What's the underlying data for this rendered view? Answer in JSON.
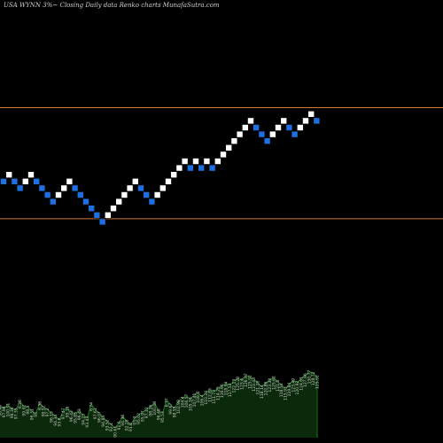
{
  "chart_data": {
    "type": "renko",
    "title": "USA WYNN 3%~  Closing Daily data  Renko  charts MunafaSutra.com",
    "ylim": [
      0,
      24
    ],
    "reference_lines": [
      18,
      1.5
    ],
    "colors": {
      "background": "#000000",
      "up_brick": "#ffffff",
      "down_brick": "#1e6fe0",
      "reference_line": "#d27a3c",
      "volume_fill": "#0b2a0b",
      "volume_line": "#1f8a1f"
    },
    "bricks": [
      {
        "level": 7,
        "dir": "down"
      },
      {
        "level": 8,
        "dir": "up"
      },
      {
        "level": 7,
        "dir": "down"
      },
      {
        "level": 6,
        "dir": "down"
      },
      {
        "level": 7,
        "dir": "up"
      },
      {
        "level": 8,
        "dir": "up"
      },
      {
        "level": 7,
        "dir": "down"
      },
      {
        "level": 6,
        "dir": "down"
      },
      {
        "level": 5,
        "dir": "down"
      },
      {
        "level": 4,
        "dir": "down"
      },
      {
        "level": 5,
        "dir": "up"
      },
      {
        "level": 6,
        "dir": "up"
      },
      {
        "level": 7,
        "dir": "up"
      },
      {
        "level": 6,
        "dir": "down"
      },
      {
        "level": 5,
        "dir": "down"
      },
      {
        "level": 4,
        "dir": "down"
      },
      {
        "level": 3,
        "dir": "down"
      },
      {
        "level": 2,
        "dir": "down"
      },
      {
        "level": 1,
        "dir": "down"
      },
      {
        "level": 2,
        "dir": "up"
      },
      {
        "level": 3,
        "dir": "up"
      },
      {
        "level": 4,
        "dir": "up"
      },
      {
        "level": 5,
        "dir": "up"
      },
      {
        "level": 6,
        "dir": "up"
      },
      {
        "level": 7,
        "dir": "up"
      },
      {
        "level": 6,
        "dir": "down"
      },
      {
        "level": 5,
        "dir": "down"
      },
      {
        "level": 4,
        "dir": "down"
      },
      {
        "level": 5,
        "dir": "up"
      },
      {
        "level": 6,
        "dir": "up"
      },
      {
        "level": 7,
        "dir": "up"
      },
      {
        "level": 8,
        "dir": "up"
      },
      {
        "level": 9,
        "dir": "up"
      },
      {
        "level": 10,
        "dir": "up"
      },
      {
        "level": 9,
        "dir": "down"
      },
      {
        "level": 10,
        "dir": "up"
      },
      {
        "level": 9,
        "dir": "down"
      },
      {
        "level": 10,
        "dir": "up"
      },
      {
        "level": 9,
        "dir": "down"
      },
      {
        "level": 10,
        "dir": "up"
      },
      {
        "level": 11,
        "dir": "up"
      },
      {
        "level": 12,
        "dir": "up"
      },
      {
        "level": 13,
        "dir": "up"
      },
      {
        "level": 14,
        "dir": "up"
      },
      {
        "level": 15,
        "dir": "up"
      },
      {
        "level": 16,
        "dir": "up"
      },
      {
        "level": 15,
        "dir": "down"
      },
      {
        "level": 14,
        "dir": "down"
      },
      {
        "level": 13,
        "dir": "down"
      },
      {
        "level": 14,
        "dir": "up"
      },
      {
        "level": 15,
        "dir": "up"
      },
      {
        "level": 16,
        "dir": "up"
      },
      {
        "level": 15,
        "dir": "down"
      },
      {
        "level": 14,
        "dir": "down"
      },
      {
        "level": 15,
        "dir": "up"
      },
      {
        "level": 16,
        "dir": "up"
      },
      {
        "level": 17,
        "dir": "up"
      },
      {
        "level": 16,
        "dir": "down"
      }
    ],
    "volume": [
      {
        "value": 38,
        "label": "98.46"
      },
      {
        "value": 36,
        "label": "97.98"
      },
      {
        "value": 40,
        "label": "100.01"
      },
      {
        "value": 35,
        "label": "98.36"
      },
      {
        "value": 34,
        "label": "97.35"
      },
      {
        "value": 44,
        "label": "6.28"
      },
      {
        "value": 38,
        "label": "99.92"
      },
      {
        "value": 37,
        "label": "98.3"
      },
      {
        "value": 33,
        "label": "96.31"
      },
      {
        "value": 29,
        "label": "95"
      },
      {
        "value": 42,
        "label": "6.38"
      },
      {
        "value": 37,
        "label": "98.52"
      },
      {
        "value": 34,
        "label": "97.2"
      },
      {
        "value": 30,
        "label": "96.15"
      },
      {
        "value": 26,
        "label": "94.34"
      },
      {
        "value": 22,
        "label": "93.6"
      },
      {
        "value": 34,
        "label": "97.47"
      },
      {
        "value": 36,
        "label": "99.15"
      },
      {
        "value": 31,
        "label": "96.43"
      },
      {
        "value": 29,
        "label": "95.85"
      },
      {
        "value": 33,
        "label": "96.43"
      },
      {
        "value": 27,
        "label": "94.23"
      },
      {
        "value": 24,
        "label": "93.43"
      },
      {
        "value": 41,
        "label": "6.74"
      },
      {
        "value": 34,
        "label": "97.61"
      },
      {
        "value": 30,
        "label": "96.07"
      },
      {
        "value": 25,
        "label": "94.85"
      },
      {
        "value": 20,
        "label": "93.52"
      },
      {
        "value": 16,
        "label": "92.4"
      },
      {
        "value": 12,
        "label": "90.61"
      },
      {
        "value": 18,
        "label": "91.6"
      },
      {
        "value": 26,
        "label": "94.36"
      },
      {
        "value": 20,
        "label": "92.28"
      },
      {
        "value": 16,
        "label": "91.8"
      },
      {
        "value": 24,
        "label": "93.9"
      },
      {
        "value": 28,
        "label": "95.02"
      },
      {
        "value": 31,
        "label": "95.97"
      },
      {
        "value": 35,
        "label": "97.32"
      },
      {
        "value": 38,
        "label": "98.16"
      },
      {
        "value": 42,
        "label": "100.08"
      },
      {
        "value": 33,
        "label": "96.48"
      },
      {
        "value": 30,
        "label": "95.53"
      },
      {
        "value": 46,
        "label": "6.77"
      },
      {
        "value": 40,
        "label": "99.67"
      },
      {
        "value": 36,
        "label": "98.55"
      },
      {
        "value": 44,
        "label": "102.98"
      },
      {
        "value": 48,
        "label": "104.4"
      },
      {
        "value": 51,
        "label": "106.57"
      },
      {
        "value": 47,
        "label": "105.16"
      },
      {
        "value": 52,
        "label": "107.41"
      },
      {
        "value": 54,
        "label": "108.8"
      },
      {
        "value": 50,
        "label": "106.4"
      },
      {
        "value": 55,
        "label": "110.24"
      },
      {
        "value": 58,
        "label": "112.83"
      },
      {
        "value": 56,
        "label": "111.73"
      },
      {
        "value": 60,
        "label": "114.25"
      },
      {
        "value": 63,
        "label": "116.96"
      },
      {
        "value": 66,
        "label": "118.94"
      },
      {
        "value": 64,
        "label": "117.53"
      },
      {
        "value": 69,
        "label": "122.13"
      },
      {
        "value": 72,
        "label": "125.28"
      },
      {
        "value": 70,
        "label": "123.6"
      },
      {
        "value": 76,
        "label": "126.97"
      },
      {
        "value": 74,
        "label": "125.92"
      },
      {
        "value": 71,
        "label": "123.43"
      },
      {
        "value": 67,
        "label": "121.28"
      },
      {
        "value": 62,
        "label": "118.14"
      },
      {
        "value": 66,
        "label": "120.86"
      },
      {
        "value": 70,
        "label": "123.38"
      },
      {
        "value": 73,
        "label": "125.62"
      },
      {
        "value": 68,
        "label": "121.8"
      },
      {
        "value": 64,
        "label": "118.54"
      },
      {
        "value": 60,
        "label": "115.91"
      },
      {
        "value": 65,
        "label": "119.84"
      },
      {
        "value": 70,
        "label": "123.49"
      },
      {
        "value": 67,
        "label": "120.92"
      },
      {
        "value": 72,
        "label": "124.61"
      },
      {
        "value": 76,
        "label": "127.96"
      },
      {
        "value": 80,
        "label": "130.77"
      },
      {
        "value": 78,
        "label": "128.72"
      },
      {
        "value": 74,
        "label": "125.92"
      }
    ]
  }
}
